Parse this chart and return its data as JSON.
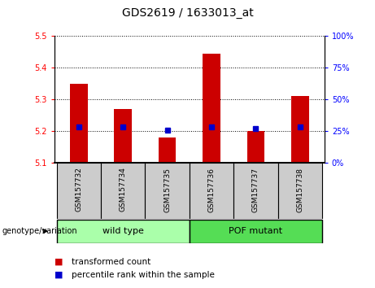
{
  "title": "GDS2619 / 1633013_at",
  "samples": [
    "GSM157732",
    "GSM157734",
    "GSM157735",
    "GSM157736",
    "GSM157737",
    "GSM157738"
  ],
  "transformed_counts": [
    5.35,
    5.27,
    5.18,
    5.445,
    5.2,
    5.31
  ],
  "percentile_ranks": [
    28,
    28,
    26,
    28,
    27,
    28
  ],
  "ylim_left": [
    5.1,
    5.5
  ],
  "ylim_right": [
    0,
    100
  ],
  "yticks_left": [
    5.1,
    5.2,
    5.3,
    5.4,
    5.5
  ],
  "yticks_right": [
    0,
    25,
    50,
    75,
    100
  ],
  "bar_color": "#cc0000",
  "dot_color": "#0000cc",
  "groups": [
    "wild type",
    "POF mutant"
  ],
  "group_sizes": [
    3,
    3
  ],
  "group_color_light": "#aaffaa",
  "group_color_dark": "#55dd55",
  "sample_bg_color": "#cccccc",
  "legend_bar_label": "transformed count",
  "legend_dot_label": "percentile rank within the sample",
  "genotype_label": "genotype/variation",
  "base_value": 5.1,
  "bar_width": 0.4,
  "title_fontsize": 10,
  "tick_fontsize": 7,
  "label_fontsize": 7.5,
  "sample_fontsize": 6.5
}
